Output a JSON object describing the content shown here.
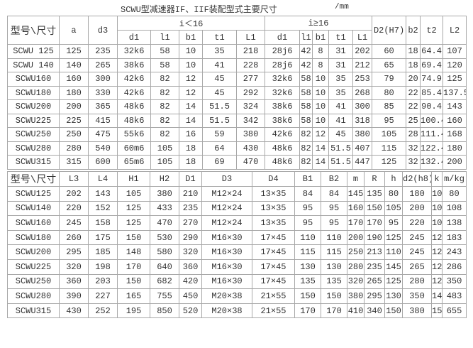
{
  "title": "SCWU型减速器IF、IIF装配型式主要尺寸",
  "unit": "/mm",
  "table1": {
    "corner": "型号\\尺寸",
    "col_a": "a",
    "col_d3": "d3",
    "group_lt16": "i＜16",
    "group_ge16": "i≥16",
    "sub_lt16": [
      "d1",
      "l1",
      "b1",
      "t1",
      "L1"
    ],
    "sub_ge16": [
      "d1",
      "l1",
      "b1",
      "t1",
      "L1"
    ],
    "col_D2": "D2(H7)",
    "col_b2": "b2",
    "col_t2": "t2",
    "col_L2": "L2",
    "rows": [
      [
        "SCWU 125",
        "125",
        "235",
        "32k6",
        "58",
        "10",
        "35",
        "218",
        "28j6",
        "42",
        "8",
        "31",
        "202",
        "60",
        "18",
        "64.4",
        "107"
      ],
      [
        "SCWU 140",
        "140",
        "265",
        "38k6",
        "58",
        "10",
        "41",
        "228",
        "28j6",
        "42",
        "8",
        "31",
        "212",
        "65",
        "18",
        "69.4",
        "120"
      ],
      [
        "SCWU160",
        "160",
        "300",
        "42k6",
        "82",
        "12",
        "45",
        "277",
        "32k6",
        "58",
        "10",
        "35",
        "253",
        "79",
        "20",
        "74.9",
        "125"
      ],
      [
        "SCWU180",
        "180",
        "330",
        "42k6",
        "82",
        "12",
        "45",
        "292",
        "32k6",
        "58",
        "10",
        "35",
        "268",
        "80",
        "22",
        "85.4",
        "137.5"
      ],
      [
        "SCWU200",
        "200",
        "365",
        "48k6",
        "82",
        "14",
        "51.5",
        "324",
        "38k6",
        "58",
        "10",
        "41",
        "300",
        "85",
        "22",
        "90.4",
        "143"
      ],
      [
        "SCWU225",
        "225",
        "415",
        "48k6",
        "82",
        "14",
        "51.5",
        "342",
        "38k6",
        "58",
        "10",
        "41",
        "318",
        "95",
        "25",
        "100.4",
        "160"
      ],
      [
        "SCWU250",
        "250",
        "475",
        "55k6",
        "82",
        "16",
        "59",
        "380",
        "42k6",
        "82",
        "12",
        "45",
        "380",
        "105",
        "28",
        "111.4",
        "168"
      ],
      [
        "SCWU280",
        "280",
        "540",
        "60m6",
        "105",
        "18",
        "64",
        "430",
        "48k6",
        "82",
        "14",
        "51.5",
        "407",
        "115",
        "32",
        "122.4",
        "180"
      ],
      [
        "SCWU315",
        "315",
        "600",
        "65m6",
        "105",
        "18",
        "69",
        "470",
        "48k6",
        "82",
        "14",
        "51.5",
        "447",
        "125",
        "32",
        "132.4",
        "200"
      ]
    ]
  },
  "table2": {
    "headers": [
      "型号\\尺寸",
      "L3",
      "L4",
      "H1",
      "H2",
      "D1",
      "D3",
      "D4",
      "B1",
      "B2",
      "m",
      "R",
      "h",
      "d2(h8)",
      "k",
      "m/kg"
    ],
    "rows": [
      [
        "SCWU125",
        "202",
        "143",
        "105",
        "380",
        "210",
        "M12×24",
        "13×35",
        "84",
        "84",
        "145",
        "135",
        "80",
        "180",
        "10",
        "80"
      ],
      [
        "SCWU140",
        "220",
        "152",
        "125",
        "433",
        "235",
        "M12×24",
        "13×35",
        "95",
        "95",
        "160",
        "150",
        "105",
        "200",
        "10",
        "108"
      ],
      [
        "SCWU160",
        "245",
        "158",
        "125",
        "470",
        "270",
        "M12×24",
        "13×35",
        "95",
        "95",
        "170",
        "170",
        "95",
        "220",
        "10",
        "138"
      ],
      [
        "SCWU180",
        "260",
        "175",
        "150",
        "530",
        "290",
        "M16×30",
        "17×45",
        "110",
        "110",
        "200",
        "190",
        "125",
        "245",
        "12",
        "183"
      ],
      [
        "SCWU200",
        "295",
        "185",
        "148",
        "580",
        "320",
        "M16×30",
        "17×45",
        "115",
        "115",
        "250",
        "213",
        "110",
        "245",
        "12",
        "243"
      ],
      [
        "SCWU225",
        "320",
        "198",
        "170",
        "640",
        "360",
        "M16×30",
        "17×45",
        "130",
        "130",
        "280",
        "235",
        "145",
        "265",
        "12",
        "286"
      ],
      [
        "SCWU250",
        "360",
        "203",
        "150",
        "682",
        "420",
        "M16×30",
        "17×45",
        "135",
        "135",
        "320",
        "265",
        "125",
        "280",
        "12",
        "350"
      ],
      [
        "SCWU280",
        "390",
        "227",
        "165",
        "755",
        "450",
        "M20×38",
        "21×55",
        "150",
        "150",
        "380",
        "295",
        "130",
        "350",
        "14",
        "483"
      ],
      [
        "SCWU315",
        "430",
        "252",
        "195",
        "850",
        "520",
        "M20×38",
        "21×55",
        "170",
        "170",
        "410",
        "340",
        "150",
        "380",
        "15",
        "655"
      ]
    ]
  }
}
